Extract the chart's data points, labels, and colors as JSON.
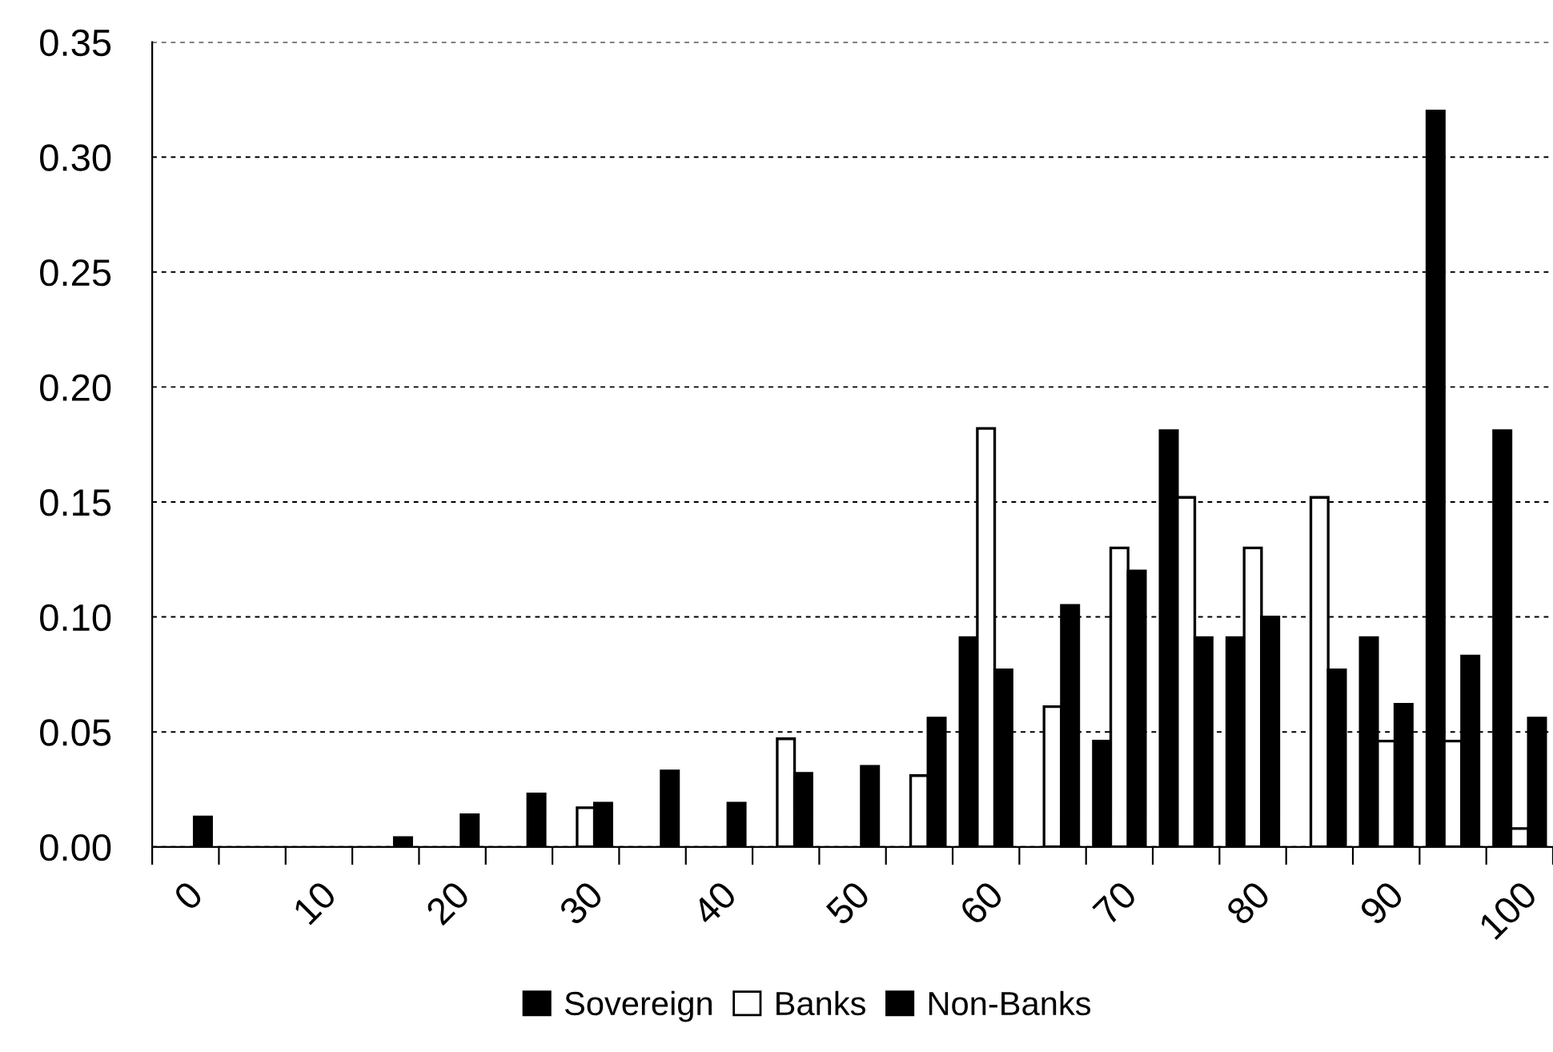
{
  "chart_data": {
    "type": "bar",
    "categories": [
      "0",
      null,
      "10",
      null,
      "20",
      null,
      "30",
      null,
      "40",
      null,
      "50",
      null,
      "60",
      null,
      "70",
      null,
      "80",
      null,
      "90",
      null,
      "100"
    ],
    "series": [
      {
        "name": "Sovereign",
        "color": "#000000",
        "values": [
          null,
          null,
          null,
          null,
          null,
          null,
          null,
          null,
          null,
          null,
          null,
          null,
          0.091,
          null,
          0.046,
          0.181,
          0.091,
          null,
          0.091,
          0.32,
          0.181
        ]
      },
      {
        "name": "Banks",
        "color": "#ffffff",
        "values": [
          null,
          null,
          null,
          null,
          null,
          null,
          0.017,
          null,
          null,
          0.047,
          null,
          0.031,
          0.182,
          0.061,
          0.13,
          0.152,
          0.13,
          0.152,
          0.046,
          0.046,
          0.008
        ]
      },
      {
        "name": "Non-Banks",
        "color": "#000000",
        "values": [
          0.013,
          null,
          null,
          0.004,
          0.014,
          0.023,
          0.019,
          0.033,
          0.019,
          0.032,
          0.035,
          0.056,
          0.077,
          0.105,
          0.12,
          0.091,
          0.1,
          0.077,
          0.062,
          0.083,
          0.056
        ]
      }
    ],
    "ylim": [
      0,
      0.35
    ],
    "yticks": [
      {
        "value": 0,
        "label": "0.00"
      },
      {
        "value": 0.05,
        "label": "0.05"
      },
      {
        "value": 0.1,
        "label": "0.10"
      },
      {
        "value": 0.15,
        "label": "0.15"
      },
      {
        "value": 0.2,
        "label": "0.20"
      },
      {
        "value": 0.25,
        "label": "0.25"
      },
      {
        "value": 0.3,
        "label": "0.30"
      },
      {
        "value": 0.35,
        "label": "0.35"
      }
    ],
    "grid": "y",
    "legend": "bottom"
  }
}
